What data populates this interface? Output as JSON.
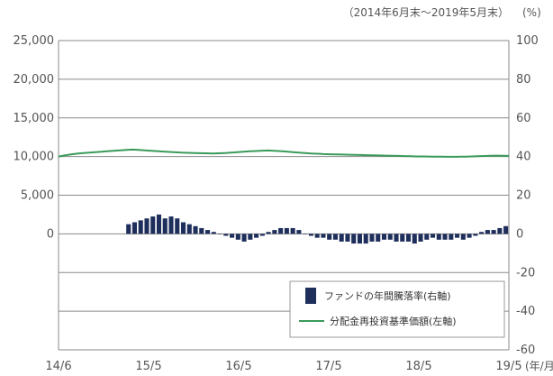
{
  "chart_data": {
    "type": "bar",
    "title": "",
    "period_note": "（2014年6月末～2019年5月末）",
    "left_axis": {
      "ylim": [
        -15000,
        25000
      ],
      "ticks": [
        "25,000",
        "20,000",
        "15,000",
        "10,000",
        "5,000",
        "0"
      ]
    },
    "right_axis": {
      "unit": "(%)",
      "ylim": [
        -60,
        100
      ],
      "ticks": [
        "100",
        "80",
        "60",
        "40",
        "20",
        "0",
        "-20",
        "-40",
        "-60"
      ]
    },
    "x_axis": {
      "unit": "(年/月)",
      "ticks": [
        "14/6",
        "15/5",
        "16/5",
        "17/5",
        "18/5",
        "19/5"
      ]
    },
    "grid": true,
    "legend_position": "bottom-right",
    "series": [
      {
        "name": "ファンドの年間騰落率(右軸)",
        "type": "bar",
        "axis": "right",
        "color": "#1f2f5c",
        "values": [
          null,
          null,
          null,
          null,
          null,
          null,
          null,
          null,
          null,
          null,
          null,
          5,
          6,
          7,
          8,
          9,
          10,
          8,
          9,
          8,
          6,
          5,
          4,
          3,
          2,
          1,
          0,
          -1,
          -2,
          -3,
          -4,
          -3,
          -2,
          -1,
          1,
          2,
          3,
          3,
          3,
          2,
          0,
          -1,
          -2,
          -2,
          -3,
          -3,
          -4,
          -4,
          -5,
          -5,
          -5,
          -4,
          -4,
          -3,
          -3,
          -4,
          -4,
          -4,
          -5,
          -4,
          -3,
          -2,
          -3,
          -3,
          -3,
          -2,
          -3,
          -2,
          -1,
          1,
          2,
          2,
          3,
          4
        ]
      },
      {
        "name": "分配金再投資基準価額(左軸)",
        "type": "line",
        "axis": "left",
        "color": "#3a9a5a",
        "values": [
          10000,
          10150,
          10280,
          10380,
          10450,
          10500,
          10560,
          10620,
          10700,
          10750,
          10800,
          10850,
          10900,
          10850,
          10800,
          10750,
          10700,
          10650,
          10600,
          10550,
          10500,
          10480,
          10460,
          10440,
          10420,
          10400,
          10420,
          10460,
          10500,
          10560,
          10620,
          10680,
          10720,
          10760,
          10780,
          10750,
          10700,
          10640,
          10580,
          10520,
          10460,
          10400,
          10360,
          10320,
          10300,
          10280,
          10260,
          10240,
          10220,
          10200,
          10180,
          10160,
          10140,
          10120,
          10100,
          10080,
          10060,
          10040,
          10020,
          10010,
          10000,
          9990,
          9980,
          9970,
          9970,
          9980,
          9990,
          10010,
          10040,
          10070,
          10100,
          10120,
          10100,
          10080
        ]
      }
    ]
  }
}
